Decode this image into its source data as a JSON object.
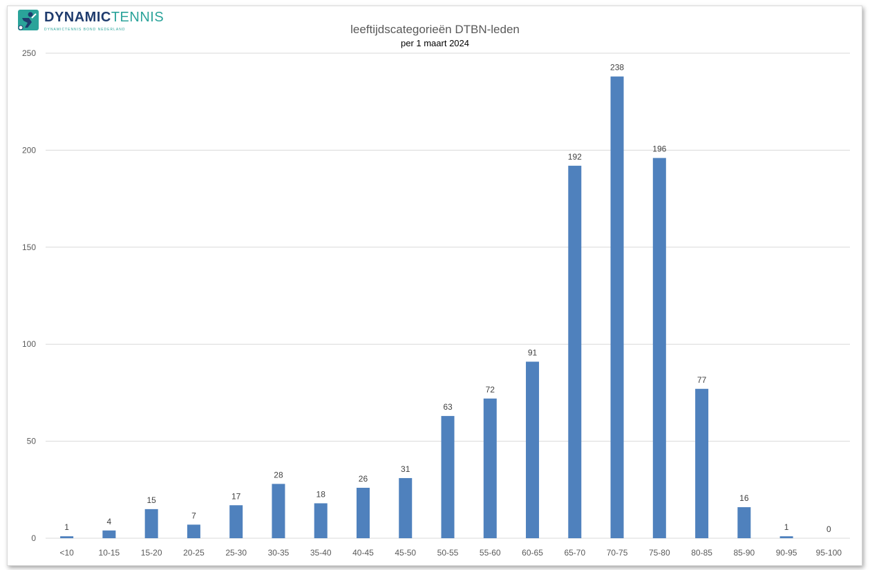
{
  "logo": {
    "brand_part1": "DYNAMIC",
    "brand_part2": "TENNIS",
    "tagline": "DYNAMICTENNIS BOND NEDERLAND",
    "icon": "tennis-player-icon"
  },
  "colors": {
    "bar": "#4f81bd",
    "grid": "#d9d9d9",
    "axis_text": "#595959",
    "title": "#595959",
    "brand_dark": "#1f3c6e",
    "brand_teal": "#2aa39a"
  },
  "chart_data": {
    "type": "bar",
    "title": "leeftijdscategorieën DTBN-leden",
    "subtitle": "per 1 maart 2024",
    "xlabel": "",
    "ylabel": "",
    "ylim": [
      0,
      250
    ],
    "yticks": [
      0,
      50,
      100,
      150,
      200,
      250
    ],
    "grid": true,
    "legend": "none",
    "categories": [
      "<10",
      "10-15",
      "15-20",
      "20-25",
      "25-30",
      "30-35",
      "35-40",
      "40-45",
      "45-50",
      "50-55",
      "55-60",
      "60-65",
      "65-70",
      "70-75",
      "75-80",
      "80-85",
      "85-90",
      "90-95",
      "95-100"
    ],
    "values": [
      1,
      4,
      15,
      7,
      17,
      28,
      18,
      26,
      31,
      63,
      72,
      91,
      192,
      238,
      196,
      77,
      16,
      1,
      0
    ]
  }
}
